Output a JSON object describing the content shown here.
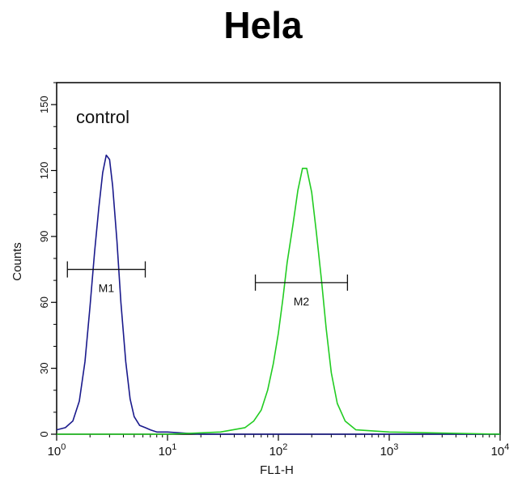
{
  "chart_data": {
    "type": "line",
    "title": "Hela",
    "xlabel": "FL1-H",
    "ylabel": "Counts",
    "x_scale": "log",
    "xlim": [
      1,
      10000
    ],
    "ylim": [
      0,
      160
    ],
    "x_ticks": [
      {
        "value": 1,
        "base": "10",
        "exp": "0"
      },
      {
        "value": 10,
        "base": "10",
        "exp": "1"
      },
      {
        "value": 100,
        "base": "10",
        "exp": "2"
      },
      {
        "value": 1000,
        "base": "10",
        "exp": "3"
      },
      {
        "value": 10000,
        "base": "10",
        "exp": "4"
      }
    ],
    "y_ticks": [
      "0",
      "30",
      "60",
      "90",
      "120",
      "150"
    ],
    "annotation": "control",
    "grid": false,
    "series": [
      {
        "color": "#1a1a8c",
        "x": [
          1.0,
          1.2,
          1.4,
          1.6,
          1.8,
          2.0,
          2.2,
          2.4,
          2.6,
          2.8,
          3.0,
          3.2,
          3.5,
          3.8,
          4.2,
          4.6,
          5.0,
          5.6,
          6.3,
          7.0,
          8.0,
          10.0,
          20.0,
          100.0,
          1000.0,
          10000.0
        ],
        "y": [
          2,
          3,
          6,
          15,
          33,
          58,
          83,
          103,
          119,
          127,
          125,
          113,
          88,
          60,
          33,
          16,
          8,
          4,
          3,
          2,
          1,
          1,
          0,
          0,
          0,
          0
        ]
      },
      {
        "color": "#22cc22",
        "x": [
          1.0,
          10.0,
          30.0,
          50.0,
          60.0,
          70.0,
          80.0,
          90.0,
          100.0,
          110.0,
          120.0,
          135.0,
          150.0,
          165.0,
          180.0,
          200.0,
          220.0,
          245.0,
          270.0,
          300.0,
          340.0,
          400.0,
          500.0,
          1000.0,
          10000.0
        ],
        "y": [
          0,
          0,
          1,
          3,
          6,
          11,
          20,
          32,
          46,
          62,
          78,
          95,
          111,
          121,
          121,
          110,
          92,
          70,
          48,
          28,
          14,
          6,
          2,
          1,
          0
        ]
      }
    ],
    "markers": [
      {
        "label": "M1",
        "x_start": 1.25,
        "x_end": 6.3,
        "y": 75
      },
      {
        "label": "M2",
        "x_start": 62,
        "x_end": 420,
        "y": 69
      }
    ]
  }
}
